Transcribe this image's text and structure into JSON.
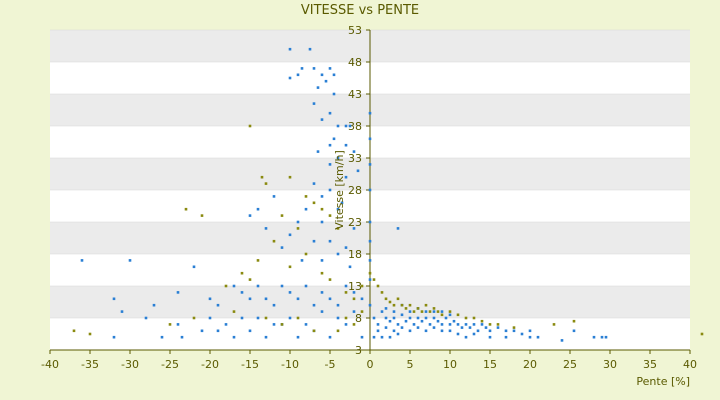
{
  "chart_data": {
    "type": "scatter",
    "title": "VITESSE vs PENTE",
    "xlabel": "Pente [%]",
    "ylabel": "Vitesse [km/h]",
    "xlim": [
      -40,
      40
    ],
    "ylim": [
      3,
      53
    ],
    "x_ticks": [
      "-40",
      "-35",
      "-30",
      "-25",
      "-20",
      "-15",
      "-10",
      "-5",
      "0",
      "5",
      "10",
      "15",
      "20",
      "25",
      "30",
      "35",
      "40"
    ],
    "y_ticks": [
      "3",
      "8",
      "13",
      "18",
      "23",
      "28",
      "33",
      "38",
      "43",
      "48",
      "53"
    ],
    "grid": "horizontal alternating bands",
    "colors": {
      "background": "#f0f5d4",
      "plot_white": "#ffffff",
      "plot_band": "#ebebeb",
      "series_blue": "#2a7fd4",
      "series_olive": "#8a8a10",
      "axis": "#5a5a00"
    },
    "series": [
      {
        "color": "#2a7fd4",
        "points": [
          [
            -10,
            50
          ],
          [
            -7.5,
            50
          ],
          [
            -8.5,
            47
          ],
          [
            -7,
            47
          ],
          [
            -6,
            46
          ],
          [
            -5,
            47
          ],
          [
            -4.5,
            46
          ],
          [
            -5.5,
            45
          ],
          [
            -10,
            45.5
          ],
          [
            -9,
            46
          ],
          [
            -6.5,
            44
          ],
          [
            -4.5,
            43
          ],
          [
            -7,
            41.5
          ],
          [
            -5,
            40
          ],
          [
            -6,
            39
          ],
          [
            -3,
            38
          ],
          [
            -4,
            38
          ],
          [
            -2.5,
            38
          ],
          [
            -4.5,
            36
          ],
          [
            -5,
            35
          ],
          [
            -3,
            35
          ],
          [
            -6.5,
            34
          ],
          [
            -2,
            34
          ],
          [
            -4,
            33
          ],
          [
            -5,
            32
          ],
          [
            -1.5,
            31
          ],
          [
            -3,
            30
          ],
          [
            -7,
            29
          ],
          [
            -5,
            28
          ],
          [
            -6,
            27
          ],
          [
            -3.5,
            26
          ],
          [
            -8,
            25
          ],
          [
            -4,
            25
          ],
          [
            -9,
            23
          ],
          [
            -6,
            23
          ],
          [
            -2,
            22
          ],
          [
            -10,
            21
          ],
          [
            -7,
            20
          ],
          [
            -5,
            20
          ],
          [
            -3,
            19
          ],
          [
            -11,
            19
          ],
          [
            -4,
            18
          ],
          [
            -8.5,
            17
          ],
          [
            -6,
            17
          ],
          [
            3.5,
            22
          ],
          [
            -2.5,
            16
          ],
          [
            -15,
            24
          ],
          [
            -14,
            25
          ],
          [
            -12,
            27
          ],
          [
            -13,
            22
          ],
          [
            -36,
            17
          ],
          [
            -30,
            17
          ],
          [
            -32,
            11
          ],
          [
            -31,
            9
          ],
          [
            -22,
            16
          ],
          [
            -27,
            10
          ],
          [
            -24,
            12
          ],
          [
            -20,
            11
          ],
          [
            -19,
            10
          ],
          [
            -17,
            13
          ],
          [
            -16,
            12
          ],
          [
            -15,
            11
          ],
          [
            -14,
            13
          ],
          [
            -13,
            11
          ],
          [
            -12,
            10
          ],
          [
            -11,
            13
          ],
          [
            -10,
            12
          ],
          [
            -9,
            11
          ],
          [
            -8,
            13
          ],
          [
            -7,
            10
          ],
          [
            -6,
            12
          ],
          [
            -5,
            11
          ],
          [
            -4,
            10
          ],
          [
            -3,
            13
          ],
          [
            -2,
            12
          ],
          [
            -1,
            11
          ],
          [
            0,
            10
          ],
          [
            -32,
            5
          ],
          [
            -26,
            5
          ],
          [
            -23.5,
            5
          ],
          [
            -21,
            6
          ],
          [
            -19,
            6
          ],
          [
            -17,
            5
          ],
          [
            -15,
            6
          ],
          [
            -13,
            5
          ],
          [
            -11,
            7
          ],
          [
            -9,
            5
          ],
          [
            -7,
            6
          ],
          [
            -5,
            5
          ],
          [
            -3,
            7
          ],
          [
            -1,
            5
          ],
          [
            -18,
            7
          ],
          [
            -14,
            8
          ],
          [
            -12,
            7
          ],
          [
            -10,
            8
          ],
          [
            -8,
            7
          ],
          [
            -6,
            9
          ],
          [
            -4,
            8
          ],
          [
            -2,
            9
          ],
          [
            -16,
            8
          ],
          [
            -20,
            8
          ],
          [
            -24,
            7
          ],
          [
            -28,
            8
          ],
          [
            0.5,
            8
          ],
          [
            1,
            7
          ],
          [
            1.5,
            9
          ],
          [
            2,
            8
          ],
          [
            2.5,
            7.5
          ],
          [
            3,
            8
          ],
          [
            3.5,
            7
          ],
          [
            4,
            8.5
          ],
          [
            4.5,
            7.5
          ],
          [
            5,
            8
          ],
          [
            5.5,
            7
          ],
          [
            6,
            8
          ],
          [
            6.5,
            7.5
          ],
          [
            7,
            8
          ],
          [
            7.5,
            7
          ],
          [
            8,
            8
          ],
          [
            8.5,
            7.5
          ],
          [
            9,
            7
          ],
          [
            9.5,
            8
          ],
          [
            10,
            7
          ],
          [
            10.5,
            7.5
          ],
          [
            11,
            7
          ],
          [
            11.5,
            6.5
          ],
          [
            12,
            7
          ],
          [
            12.5,
            6.5
          ],
          [
            13,
            7
          ],
          [
            13.5,
            6
          ],
          [
            14,
            7
          ],
          [
            14.5,
            6.5
          ],
          [
            15,
            6
          ],
          [
            16,
            6.5
          ],
          [
            17,
            6
          ],
          [
            18,
            6
          ],
          [
            19,
            5.5
          ],
          [
            20,
            6
          ],
          [
            21,
            5
          ],
          [
            2,
            9.5
          ],
          [
            3,
            9
          ],
          [
            4,
            10
          ],
          [
            5,
            9
          ],
          [
            6,
            9.5
          ],
          [
            7,
            9
          ],
          [
            8,
            9
          ],
          [
            9,
            9
          ],
          [
            10,
            8.5
          ],
          [
            1,
            6
          ],
          [
            2,
            6.5
          ],
          [
            3,
            6
          ],
          [
            4,
            6.5
          ],
          [
            5,
            6
          ],
          [
            6,
            6.5
          ],
          [
            7,
            6
          ],
          [
            8,
            6.5
          ],
          [
            9,
            6
          ],
          [
            10,
            6
          ],
          [
            0.5,
            5
          ],
          [
            1.5,
            5
          ],
          [
            2.5,
            5
          ],
          [
            3.5,
            5.5
          ],
          [
            11,
            5.5
          ],
          [
            12,
            5
          ],
          [
            13,
            5.5
          ],
          [
            15,
            5
          ],
          [
            17,
            5
          ],
          [
            20,
            5
          ],
          [
            25.5,
            6
          ],
          [
            28,
            5
          ],
          [
            29,
            5
          ],
          [
            29.5,
            5
          ],
          [
            24,
            4.5
          ],
          [
            0,
            40
          ],
          [
            0,
            36
          ],
          [
            0,
            32
          ],
          [
            0,
            28
          ],
          [
            0,
            23
          ],
          [
            0,
            20
          ],
          [
            0,
            17
          ],
          [
            0,
            14
          ]
        ]
      },
      {
        "color": "#8a8a10",
        "points": [
          [
            -15,
            38
          ],
          [
            -13.5,
            30
          ],
          [
            -13,
            29
          ],
          [
            -10,
            30
          ],
          [
            -8,
            27
          ],
          [
            -7,
            26
          ],
          [
            -6,
            25
          ],
          [
            -5,
            24
          ],
          [
            -4,
            22
          ],
          [
            -11,
            24
          ],
          [
            -9,
            22
          ],
          [
            -12,
            20
          ],
          [
            -8,
            18
          ],
          [
            -14,
            17
          ],
          [
            -23,
            25
          ],
          [
            -21,
            24
          ],
          [
            -16,
            15
          ],
          [
            -15,
            14
          ],
          [
            -18,
            13
          ],
          [
            -10,
            16
          ],
          [
            -6,
            15
          ],
          [
            -5,
            14
          ],
          [
            -3,
            12
          ],
          [
            -2,
            11
          ],
          [
            -1,
            13
          ],
          [
            -37,
            6
          ],
          [
            -35,
            5.5
          ],
          [
            -25,
            7
          ],
          [
            -22,
            8
          ],
          [
            -17,
            9
          ],
          [
            -13,
            8
          ],
          [
            -11,
            7
          ],
          [
            -9,
            8
          ],
          [
            -7,
            6
          ],
          [
            -4,
            6
          ],
          [
            0,
            15
          ],
          [
            0.5,
            14
          ],
          [
            1,
            13
          ],
          [
            1.5,
            12
          ],
          [
            2,
            11
          ],
          [
            2.5,
            10.5
          ],
          [
            3,
            10
          ],
          [
            3.5,
            11
          ],
          [
            4,
            10
          ],
          [
            4.5,
            9.5
          ],
          [
            5,
            10
          ],
          [
            5.5,
            9
          ],
          [
            6,
            9.5
          ],
          [
            6.5,
            9
          ],
          [
            7,
            10
          ],
          [
            7.5,
            9
          ],
          [
            8,
            9.5
          ],
          [
            8.5,
            9
          ],
          [
            9,
            8.5
          ],
          [
            10,
            9
          ],
          [
            11,
            8.5
          ],
          [
            12,
            8
          ],
          [
            13,
            8
          ],
          [
            14,
            7.5
          ],
          [
            15,
            7
          ],
          [
            16,
            7
          ],
          [
            18,
            6.5
          ],
          [
            23,
            7
          ],
          [
            25.5,
            7.5
          ],
          [
            41.5,
            5.5
          ],
          [
            -1,
            9
          ],
          [
            -2,
            7
          ],
          [
            -3,
            8
          ]
        ]
      }
    ]
  }
}
